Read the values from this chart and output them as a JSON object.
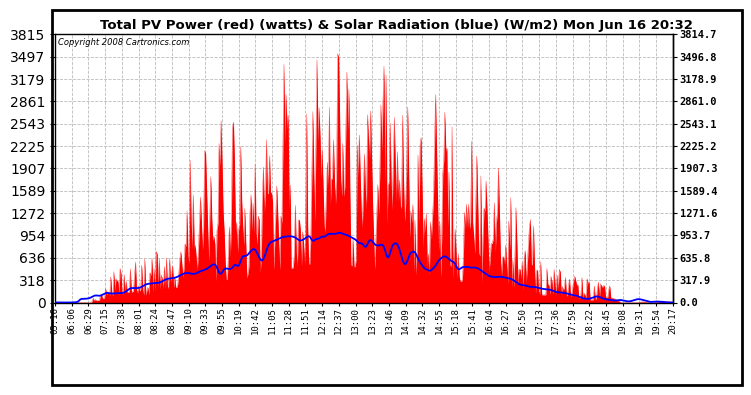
{
  "title": "Total PV Power (red) (watts) & Solar Radiation (blue) (W/m2) Mon Jun 16 20:32",
  "copyright": "Copyright 2008 Cartronics.com",
  "background_color": "#ffffff",
  "plot_bg_color": "#ffffff",
  "y_max": 3814.7,
  "y_min": 0.0,
  "y_ticks": [
    0.0,
    317.9,
    635.8,
    953.7,
    1271.6,
    1589.4,
    1907.3,
    2225.2,
    2543.1,
    2861.0,
    3178.9,
    3496.8,
    3814.7
  ],
  "x_labels": [
    "05:16",
    "06:06",
    "06:29",
    "07:15",
    "07:38",
    "08:01",
    "08:24",
    "08:47",
    "09:10",
    "09:33",
    "09:55",
    "10:19",
    "10:42",
    "11:05",
    "11:28",
    "11:51",
    "12:14",
    "12:37",
    "13:00",
    "13:23",
    "13:46",
    "14:09",
    "14:32",
    "14:55",
    "15:18",
    "15:41",
    "16:04",
    "16:27",
    "16:50",
    "17:13",
    "17:36",
    "17:59",
    "18:22",
    "18:45",
    "19:08",
    "19:31",
    "19:54",
    "20:17"
  ],
  "grid_color": "#bbbbbb",
  "red_color": "#ff0000",
  "blue_color": "#0000ff",
  "title_fontsize": 9.5,
  "tick_fontsize": 6.5,
  "ytick_fontsize": 7.5
}
